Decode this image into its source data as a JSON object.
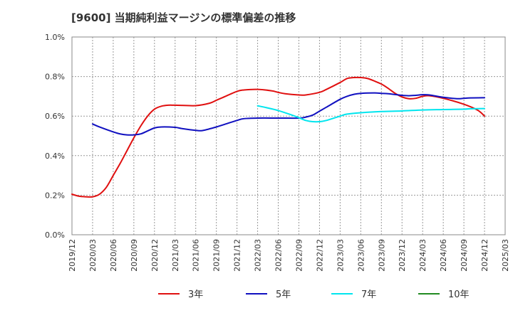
{
  "chart_data": {
    "type": "line",
    "title": "[9600]  当期純利益マージンの標準偏差の推移",
    "xlabel": "",
    "ylabel": "",
    "ylim": [
      0,
      1.0
    ],
    "y_ticks": [
      "0.0%",
      "0.2%",
      "0.4%",
      "0.6%",
      "0.8%",
      "1.0%"
    ],
    "y_tick_values": [
      0,
      0.2,
      0.4,
      0.6,
      0.8,
      1.0
    ],
    "x_ticks": [
      "2019/12",
      "2020/03",
      "2020/06",
      "2020/09",
      "2020/12",
      "2021/03",
      "2021/06",
      "2021/09",
      "2021/12",
      "2022/03",
      "2022/06",
      "2022/09",
      "2022/12",
      "2023/03",
      "2023/06",
      "2023/09",
      "2023/12",
      "2024/03",
      "2024/06",
      "2024/09",
      "2024/12",
      "2025/03"
    ],
    "grid": true,
    "legend_position": "bottom",
    "series": [
      {
        "name": "3年",
        "color": "#e01010",
        "values": [
          [
            "2019/12",
            0.205
          ],
          [
            "2020/01",
            0.195
          ],
          [
            "2020/02",
            0.192
          ],
          [
            "2020/03",
            0.192
          ],
          [
            "2020/04",
            0.205
          ],
          [
            "2020/05",
            0.24
          ],
          [
            "2020/06",
            0.3
          ],
          [
            "2020/07",
            0.36
          ],
          [
            "2020/08",
            0.425
          ],
          [
            "2020/09",
            0.49
          ],
          [
            "2020/10",
            0.55
          ],
          [
            "2020/11",
            0.6
          ],
          [
            "2020/12",
            0.635
          ],
          [
            "2021/01",
            0.65
          ],
          [
            "2021/02",
            0.655
          ],
          [
            "2021/03",
            0.655
          ],
          [
            "2021/06",
            0.653
          ],
          [
            "2021/08",
            0.665
          ],
          [
            "2021/09",
            0.68
          ],
          [
            "2021/10",
            0.695
          ],
          [
            "2021/12",
            0.725
          ],
          [
            "2022/01",
            0.732
          ],
          [
            "2022/03",
            0.735
          ],
          [
            "2022/05",
            0.728
          ],
          [
            "2022/06",
            0.72
          ],
          [
            "2022/07",
            0.713
          ],
          [
            "2022/09",
            0.707
          ],
          [
            "2022/10",
            0.707
          ],
          [
            "2022/12",
            0.72
          ],
          [
            "2023/01",
            0.735
          ],
          [
            "2023/03",
            0.77
          ],
          [
            "2023/04",
            0.79
          ],
          [
            "2023/05",
            0.795
          ],
          [
            "2023/06",
            0.795
          ],
          [
            "2023/07",
            0.79
          ],
          [
            "2023/08",
            0.777
          ],
          [
            "2023/09",
            0.762
          ],
          [
            "2023/10",
            0.74
          ],
          [
            "2023/11",
            0.715
          ],
          [
            "2023/12",
            0.697
          ],
          [
            "2024/01",
            0.688
          ],
          [
            "2024/02",
            0.69
          ],
          [
            "2024/03",
            0.7
          ],
          [
            "2024/04",
            0.703
          ],
          [
            "2024/06",
            0.69
          ],
          [
            "2024/09",
            0.66
          ],
          [
            "2024/11",
            0.63
          ],
          [
            "2024/12",
            0.6
          ]
        ]
      },
      {
        "name": "5年",
        "color": "#1010c0",
        "values": [
          [
            "2020/03",
            0.56
          ],
          [
            "2020/04",
            0.545
          ],
          [
            "2020/06",
            0.52
          ],
          [
            "2020/07",
            0.51
          ],
          [
            "2020/08",
            0.505
          ],
          [
            "2020/09",
            0.505
          ],
          [
            "2020/10",
            0.51
          ],
          [
            "2020/11",
            0.525
          ],
          [
            "2020/12",
            0.54
          ],
          [
            "2021/01",
            0.545
          ],
          [
            "2021/03",
            0.543
          ],
          [
            "2021/04",
            0.537
          ],
          [
            "2021/06",
            0.528
          ],
          [
            "2021/07",
            0.527
          ],
          [
            "2021/09",
            0.545
          ],
          [
            "2021/10",
            0.556
          ],
          [
            "2021/12",
            0.578
          ],
          [
            "2022/01",
            0.587
          ],
          [
            "2022/03",
            0.59
          ],
          [
            "2022/06",
            0.59
          ],
          [
            "2022/09",
            0.59
          ],
          [
            "2022/10",
            0.595
          ],
          [
            "2022/11",
            0.605
          ],
          [
            "2022/12",
            0.625
          ],
          [
            "2023/01",
            0.645
          ],
          [
            "2023/03",
            0.685
          ],
          [
            "2023/04",
            0.7
          ],
          [
            "2023/05",
            0.71
          ],
          [
            "2023/06",
            0.715
          ],
          [
            "2023/08",
            0.717
          ],
          [
            "2023/09",
            0.715
          ],
          [
            "2023/10",
            0.713
          ],
          [
            "2023/12",
            0.705
          ],
          [
            "2024/01",
            0.703
          ],
          [
            "2024/02",
            0.705
          ],
          [
            "2024/03",
            0.708
          ],
          [
            "2024/04",
            0.707
          ],
          [
            "2024/06",
            0.695
          ],
          [
            "2024/08",
            0.688
          ],
          [
            "2024/09",
            0.69
          ],
          [
            "2024/10",
            0.692
          ],
          [
            "2024/12",
            0.693
          ]
        ]
      },
      {
        "name": "7年",
        "color": "#00e5ee",
        "values": [
          [
            "2022/03",
            0.652
          ],
          [
            "2022/04",
            0.645
          ],
          [
            "2022/06",
            0.628
          ],
          [
            "2022/08",
            0.605
          ],
          [
            "2022/09",
            0.592
          ],
          [
            "2022/10",
            0.578
          ],
          [
            "2022/11",
            0.572
          ],
          [
            "2022/12",
            0.572
          ],
          [
            "2023/01",
            0.578
          ],
          [
            "2023/03",
            0.6
          ],
          [
            "2023/04",
            0.61
          ],
          [
            "2023/06",
            0.617
          ],
          [
            "2023/09",
            0.623
          ],
          [
            "2023/12",
            0.626
          ],
          [
            "2024/03",
            0.631
          ],
          [
            "2024/06",
            0.633
          ],
          [
            "2024/09",
            0.635
          ],
          [
            "2024/10",
            0.637
          ],
          [
            "2024/12",
            0.638
          ]
        ]
      },
      {
        "name": "10年",
        "color": "#228b22",
        "values": []
      }
    ]
  }
}
